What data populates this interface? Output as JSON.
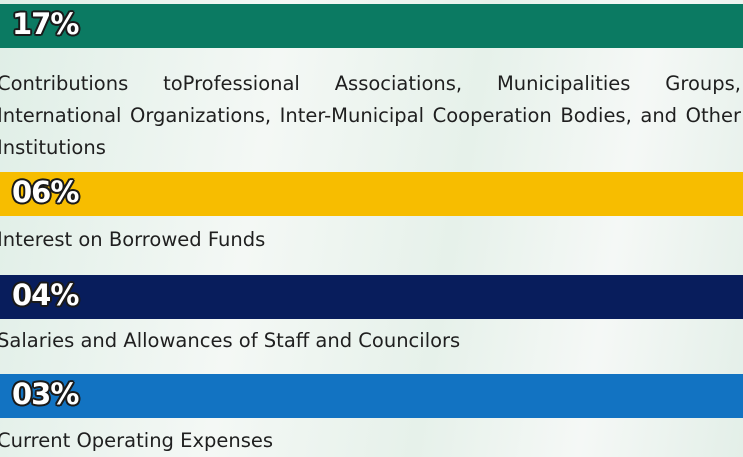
{
  "items": [
    {
      "percent": "17%",
      "text": "Contributions toProfessional Associations, Municipalities Groups, International Organizations, Inter-Municipal Cooperation Bodies, and Other Institutions"
    },
    {
      "percent": "06%",
      "text": "Interest on Borrowed Funds"
    },
    {
      "percent": "04%",
      "text": "Salaries and Allowances of Staff and Councilors"
    },
    {
      "percent": "03%",
      "text": "Current Operating Expenses"
    }
  ]
}
